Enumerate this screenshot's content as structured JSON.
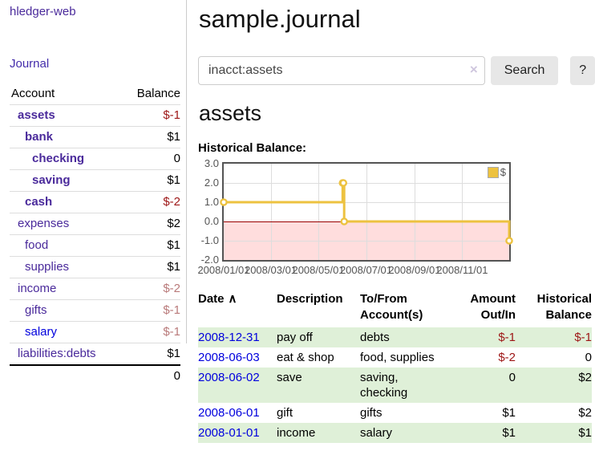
{
  "app": {
    "brand": "hledger-web",
    "nav": {
      "journal": "Journal"
    }
  },
  "sidebar": {
    "columns": {
      "account": "Account",
      "balance": "Balance"
    },
    "accounts": [
      {
        "name": "assets",
        "balance": "$-1",
        "depth": 1,
        "bold": true,
        "negative": true
      },
      {
        "name": "bank",
        "balance": "$1",
        "depth": 2,
        "bold": true,
        "negative": false
      },
      {
        "name": "checking",
        "balance": "0",
        "depth": 3,
        "bold": true,
        "negative": false
      },
      {
        "name": "saving",
        "balance": "$1",
        "depth": 3,
        "bold": true,
        "negative": false
      },
      {
        "name": "cash",
        "balance": "$-2",
        "depth": 2,
        "bold": true,
        "negative": true
      },
      {
        "name": "expenses",
        "balance": "$2",
        "depth": 1,
        "bold": false,
        "negative": false
      },
      {
        "name": "food",
        "balance": "$1",
        "depth": 2,
        "bold": false,
        "negative": false
      },
      {
        "name": "supplies",
        "balance": "$1",
        "depth": 2,
        "bold": false,
        "negative": false
      },
      {
        "name": "income",
        "balance": "$-2",
        "depth": 1,
        "bold": false,
        "negative": true
      },
      {
        "name": "gifts",
        "balance": "$-1",
        "depth": 2,
        "bold": false,
        "negative": true
      },
      {
        "name": "salary",
        "balance": "$-1",
        "depth": 2,
        "bold": false,
        "negative": true,
        "unvisited": true
      },
      {
        "name": "liabilities:debts",
        "balance": "$1",
        "depth": 1,
        "bold": false,
        "negative": false
      }
    ],
    "total": "0"
  },
  "page": {
    "title": "sample.journal"
  },
  "search": {
    "value": "inacct:assets",
    "clear_icon": "×",
    "search_button": "Search",
    "help_button": "?"
  },
  "account_view": {
    "heading": "assets",
    "chart_title": "Historical Balance:"
  },
  "chart_data": {
    "type": "line",
    "style": "step",
    "title": "Historical Balance:",
    "legend": {
      "label": "$",
      "position": "top-right",
      "color": "#edc240"
    },
    "series": [
      {
        "name": "$",
        "color": "#edc240",
        "points": [
          {
            "date": "2008-01-01",
            "value": 1
          },
          {
            "date": "2008-06-01",
            "value": 2
          },
          {
            "date": "2008-06-02",
            "value": 2
          },
          {
            "date": "2008-06-03",
            "value": 0
          },
          {
            "date": "2008-12-31",
            "value": -1
          }
        ]
      }
    ],
    "x_ticks": [
      "2008/01/01",
      "2008/03/01",
      "2008/05/01",
      "2008/07/01",
      "2008/09/01",
      "2008/11/01"
    ],
    "y_ticks": [
      3.0,
      2.0,
      1.0,
      0.0,
      -1.0,
      -2.0
    ],
    "xlim": [
      "2008-01-01",
      "2008-12-31"
    ],
    "ylim": [
      -2,
      3
    ],
    "grid": true,
    "zero_line_color": "#990000",
    "negative_region_color": "#ffdddd"
  },
  "register": {
    "columns": {
      "date": "Date",
      "description": "Description",
      "accounts": "To/From Account(s)",
      "amount": "Amount Out/In",
      "balance": "Historical Balance"
    },
    "sort_icon": "∧",
    "rows": [
      {
        "date": "2008-12-31",
        "description": "pay off",
        "accounts": "debts",
        "amount": "$-1",
        "amount_negative": true,
        "balance": "$-1",
        "balance_negative": true
      },
      {
        "date": "2008-06-03",
        "description": "eat & shop",
        "accounts": "food, supplies",
        "amount": "$-2",
        "amount_negative": true,
        "balance": "0",
        "balance_negative": false
      },
      {
        "date": "2008-06-02",
        "description": "save",
        "accounts": "saving, checking",
        "amount": "0",
        "amount_negative": false,
        "balance": "$2",
        "balance_negative": false
      },
      {
        "date": "2008-06-01",
        "description": "gift",
        "accounts": "gifts",
        "amount": "$1",
        "amount_negative": false,
        "balance": "$2",
        "balance_negative": false
      },
      {
        "date": "2008-01-01",
        "description": "income",
        "accounts": "salary",
        "amount": "$1",
        "amount_negative": false,
        "balance": "$1",
        "balance_negative": false
      }
    ]
  },
  "colors": {
    "link_purple": "#4a2a9b",
    "link_blue": "#0000dd",
    "negative": "#9d1616",
    "negative_muted": "#b97a7a",
    "row_green": "#dff0d8",
    "accent_gold": "#edc240",
    "chart_border": "#545454",
    "negative_region": "#ffdddd",
    "zero_line": "#990000"
  }
}
